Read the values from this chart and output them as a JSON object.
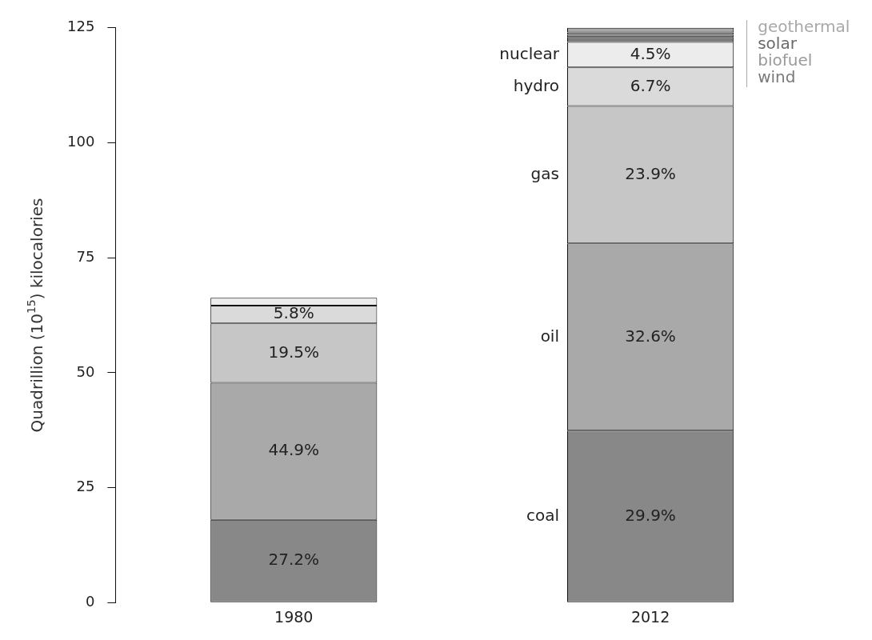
{
  "chart_data": {
    "type": "bar",
    "stacked": true,
    "ylabel": "Quadrillion (10$^{15}$) kilocalories",
    "categories": [
      "1980",
      "2012"
    ],
    "ylim": [
      0,
      125
    ],
    "yticks": [
      0,
      25,
      50,
      75,
      100,
      125
    ],
    "grid": false,
    "series": [
      {
        "name": "coal",
        "color": "#888888",
        "values": [
          18.0,
          37.4
        ]
      },
      {
        "name": "oil",
        "color": "#a9a9a9",
        "values": [
          29.8,
          40.7
        ]
      },
      {
        "name": "gas",
        "color": "#c6c6c6",
        "values": [
          12.9,
          29.9
        ]
      },
      {
        "name": "hydro",
        "color": "#dadada",
        "values": [
          3.9,
          8.4
        ]
      },
      {
        "name": "nuclear",
        "color": "#ececec",
        "values": [
          1.7,
          5.5
        ]
      },
      {
        "name": "wind",
        "color": "#7a7a7a",
        "values": [
          null,
          1.1
        ]
      },
      {
        "name": "biofuel",
        "color": "#9a9a9a",
        "values": [
          null,
          0.5
        ]
      },
      {
        "name": "solar",
        "color": "#6a6a6a",
        "values": [
          null,
          0.5
        ]
      },
      {
        "name": "geothermal",
        "color": "#a8a8a8",
        "values": [
          null,
          1.0
        ]
      }
    ],
    "annotations": [
      "27.2%",
      "44.9%",
      "19.5%",
      "5.8%",
      "29.9%",
      "32.6%",
      "23.9%",
      "6.7%",
      "4.5%"
    ]
  }
}
